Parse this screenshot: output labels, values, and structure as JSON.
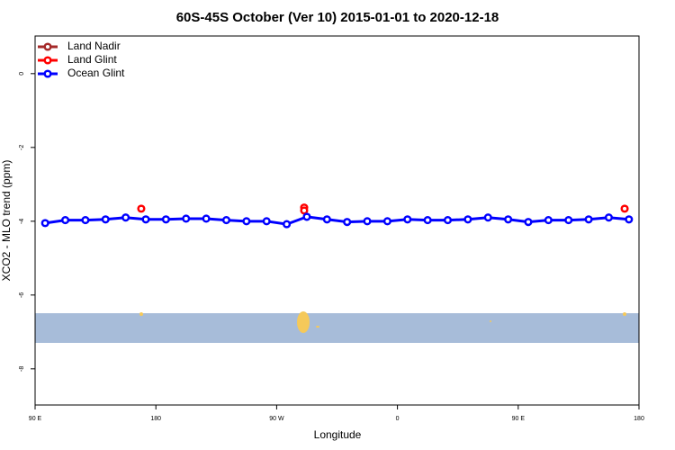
{
  "chart_data": {
    "type": "scatter-line",
    "title": "60S-45S October (Ver 10)   2015-01-01 to 2020-12-18",
    "x_label": "Longitude",
    "y_label": "XCO2 - MLO trend (ppm)",
    "xlim": [
      90,
      540
    ],
    "xticks": [
      {
        "value": 90,
        "label": "90 E"
      },
      180,
      {
        "value": 270,
        "label": "90 W"
      },
      {
        "value": 360,
        "label": "0"
      },
      {
        "value": 450,
        "label": "90 E"
      },
      {
        "value": 540,
        "label": "180"
      }
    ],
    "ylim": [
      -8.98,
      1.02
    ],
    "yticks": [
      0,
      -2,
      -4,
      -6,
      -8
    ],
    "legend": "top-left",
    "series": [
      {
        "name": "Land Nadir",
        "color": "#a52a2a",
        "x": [],
        "values": []
      },
      {
        "name": "Land Glint",
        "color": "#ff0000",
        "x": [
          169.1,
          290.5,
          290.5,
          529.3
        ],
        "values": [
          -3.66,
          -3.63,
          -3.71,
          -3.66
        ]
      },
      {
        "name": "Ocean Glint",
        "color": "#0000ff",
        "line": true,
        "x": [
          97.5,
          112.5,
          127.5,
          142.5,
          157.5,
          172.5,
          187.5,
          202.5,
          217.5,
          232.5,
          247.5,
          262.5,
          277.5,
          292.5,
          307.5,
          322.5,
          337.5,
          352.5,
          367.5,
          382.5,
          397.5,
          412.5,
          427.5,
          442.5,
          457.5,
          472.5,
          487.5,
          502.5,
          517.5,
          532.5
        ],
        "values": [
          -4.05,
          -3.97,
          -3.97,
          -3.95,
          -3.9,
          -3.95,
          -3.95,
          -3.93,
          -3.93,
          -3.97,
          -4.0,
          -4.0,
          -4.08,
          -3.88,
          -3.95,
          -4.02,
          -4.0,
          -4.0,
          -3.95,
          -3.97,
          -3.97,
          -3.95,
          -3.9,
          -3.95,
          -4.02,
          -3.97,
          -3.97,
          -3.95,
          -3.9,
          -3.95
        ]
      }
    ]
  }
}
